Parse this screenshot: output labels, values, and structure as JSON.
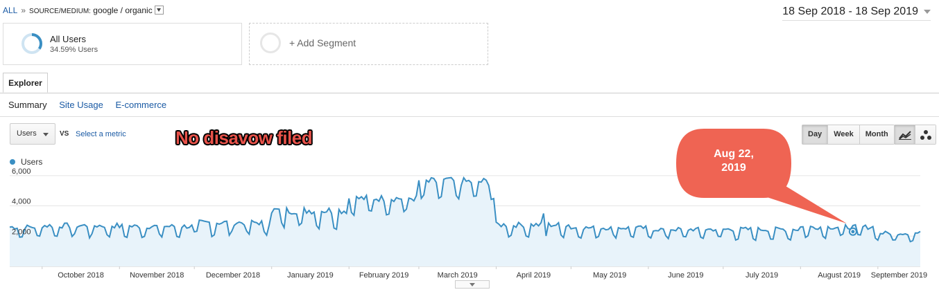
{
  "breadcrumb": {
    "all": "ALL",
    "separator": "»",
    "filter_key": "SOURCE/MEDIUM:",
    "filter_value": "google / organic"
  },
  "date_range": "18 Sep 2018 - 18 Sep 2019",
  "segments": [
    {
      "name": "All Users",
      "percent": "34.59% Users"
    },
    {
      "add_label": "+ Add Segment"
    }
  ],
  "tabs": {
    "explorer": "Explorer"
  },
  "subtabs": [
    "Summary",
    "Site Usage",
    "E-commerce"
  ],
  "metric": {
    "selected": "Users",
    "vs": "VS",
    "select_metric": "Select a metric"
  },
  "annotation_text": "No disavow filed",
  "periods": [
    "Day",
    "Week",
    "Month"
  ],
  "chart_type_icons": [
    "line-chart-icon",
    "motion-chart-icon"
  ],
  "callout": {
    "line1": "Aug 22,",
    "line2": "2019"
  },
  "colors": {
    "line": "#3a8fc3",
    "fill": "#e8f3fa",
    "callout": "#ef6453",
    "annotation": "#e8524a"
  },
  "chart_data": {
    "type": "area",
    "title": "",
    "legend": [
      "Users"
    ],
    "x_tick_labels": [
      "October 2018",
      "November 2018",
      "December 2018",
      "January 2019",
      "February 2019",
      "March 2019",
      "April 2019",
      "May 2019",
      "June 2019",
      "July 2019",
      "August 2019",
      "September 2019"
    ],
    "y_tick_labels": [
      "2,000",
      "4,000",
      "6,000"
    ],
    "ylim": [
      0,
      6400
    ],
    "grid": true,
    "highlight_point": {
      "date": "2019-08-22",
      "value": 2300
    },
    "series": [
      {
        "name": "Users",
        "monthly_values": [
          {
            "month": "Sep 2018 (18-30)",
            "weekday": 2600,
            "weekend": 1950
          },
          {
            "month": "Oct 2018",
            "weekday": 2700,
            "weekend": 2000
          },
          {
            "month": "Nov 2018",
            "weekday": 2650,
            "weekend": 2000
          },
          {
            "month": "Dec 2018",
            "weekday": 2900,
            "weekend": 2150
          },
          {
            "month": "Jan 2019",
            "weekday": 3700,
            "weekend": 2700
          },
          {
            "month": "Feb 2019",
            "weekday": 4500,
            "weekend": 3600
          },
          {
            "month": "Mar 2019",
            "weekday": 5600,
            "weekend": 4500
          },
          {
            "month": "Apr 2019",
            "weekday": 2750,
            "weekend": 2050
          },
          {
            "month": "May 2019",
            "weekday": 2550,
            "weekend": 2000
          },
          {
            "month": "Jun 2019",
            "weekday": 2450,
            "weekend": 1900
          },
          {
            "month": "Jul 2019",
            "weekday": 2450,
            "weekend": 1850
          },
          {
            "month": "Aug 2019",
            "weekday": 2600,
            "weekend": 2000
          },
          {
            "month": "Sep 2019 (1-18)",
            "weekday": 2200,
            "weekend": 1700
          }
        ],
        "peaks": [
          {
            "date": "2019-03-13",
            "value": 5850
          },
          {
            "date": "2019-03-28",
            "value": 5700
          },
          {
            "date": "2019-04-20",
            "value": 3500
          },
          {
            "date": "2019-08-19",
            "value": 2750
          }
        ]
      }
    ]
  }
}
